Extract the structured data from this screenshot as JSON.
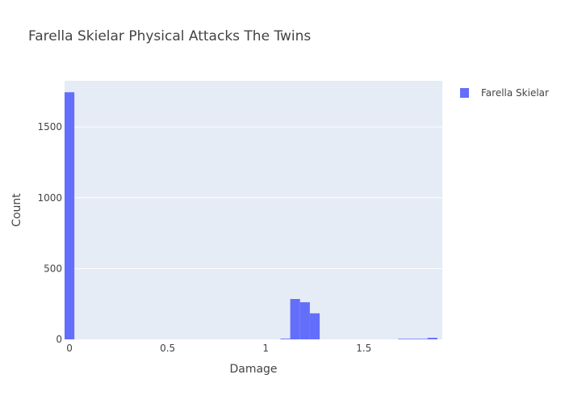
{
  "colors": {
    "bar": "#636efa",
    "plot_bg": "#e5ecf6",
    "grid": "#ffffff",
    "text": "#444444"
  },
  "chart_data": {
    "type": "bar",
    "title": "Farella Skielar Physical Attacks The Twins",
    "xlabel": "Damage",
    "ylabel": "Count",
    "xlim": [
      -0.025,
      1.9
    ],
    "ylim": [
      0,
      1826
    ],
    "x_ticks": [
      {
        "value": 0,
        "label": "0"
      },
      {
        "value": 0.5,
        "label": "0.5"
      },
      {
        "value": 1,
        "label": "1"
      },
      {
        "value": 1.5,
        "label": "1.5"
      }
    ],
    "y_ticks": [
      {
        "value": 0,
        "label": "0"
      },
      {
        "value": 500,
        "label": "500"
      },
      {
        "value": 1000,
        "label": "1000"
      },
      {
        "value": 1500,
        "label": "1500"
      }
    ],
    "grid": true,
    "legend": {
      "position": "top-right",
      "entries": [
        "Farella Skielar"
      ]
    },
    "series": [
      {
        "name": "Farella Skielar",
        "bins": [
          {
            "x0": -0.025,
            "x1": 0.025,
            "count": 1745
          },
          {
            "x0": 1.075,
            "x1": 1.125,
            "count": 5
          },
          {
            "x0": 1.125,
            "x1": 1.175,
            "count": 285
          },
          {
            "x0": 1.175,
            "x1": 1.225,
            "count": 262
          },
          {
            "x0": 1.225,
            "x1": 1.275,
            "count": 184
          },
          {
            "x0": 1.675,
            "x1": 1.725,
            "count": 4
          },
          {
            "x0": 1.725,
            "x1": 1.775,
            "count": 4
          },
          {
            "x0": 1.775,
            "x1": 1.825,
            "count": 4
          },
          {
            "x0": 1.825,
            "x1": 1.875,
            "count": 11
          }
        ]
      }
    ]
  }
}
